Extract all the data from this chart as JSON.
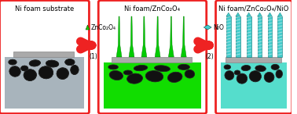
{
  "title1": "Ni foam substrate",
  "title2": "Ni foam/ZnCo₂O₄",
  "title3": "Ni foam/ZnCo₂O₄/NiO",
  "arrow1_label": "ZnCo₂O₄",
  "arrow1_step": "(1)",
  "arrow2_label": "NiO",
  "arrow2_step": "(2)",
  "border_color": "#ee2222",
  "bg1_color": "#a8b4bc",
  "bg2_color": "#11dd00",
  "bg3_color": "#55ddcc",
  "pore_color": "#111111",
  "substrate_color": "#aaaaaa",
  "nanowire_green": "#00cc00",
  "nanowire_cyan": "#44cccc",
  "arrow_red": "#ee2222",
  "znco_color": "#22cc00",
  "nio_color": "#44cccc",
  "fig_bg": "#ffffff",
  "title_fontsize": 6.0,
  "label_fontsize": 5.5
}
